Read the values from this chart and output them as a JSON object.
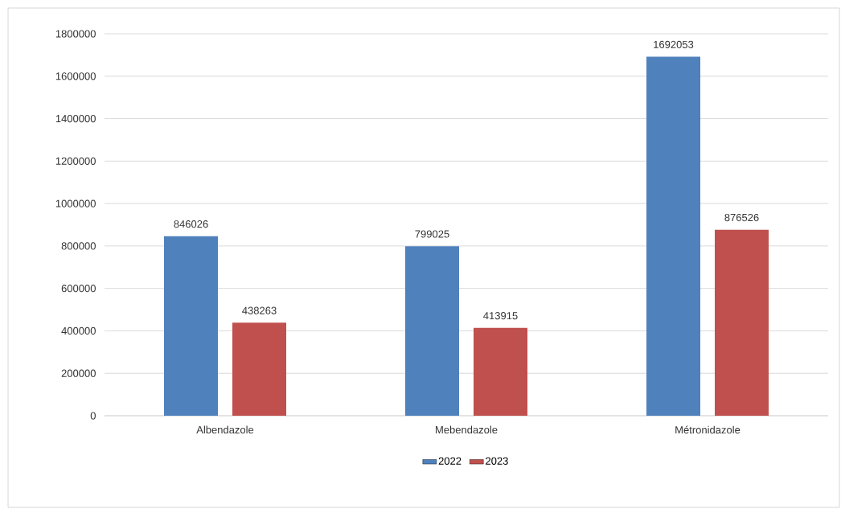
{
  "chart_data": {
    "type": "bar",
    "categories": [
      "Albendazole",
      "Mebendazole",
      "Métronidazole"
    ],
    "series": [
      {
        "name": "2022",
        "color": "#4f81bd",
        "values": [
          846026,
          799025,
          1692053
        ]
      },
      {
        "name": "2023",
        "color": "#c0504d",
        "values": [
          438263,
          413915,
          876526
        ]
      }
    ],
    "ylim": [
      0,
      1800000
    ],
    "yticks": [
      0,
      200000,
      400000,
      600000,
      800000,
      1000000,
      1200000,
      1400000,
      1600000,
      1800000
    ],
    "grid": "y",
    "legend": "bottom",
    "data_labels": true
  }
}
